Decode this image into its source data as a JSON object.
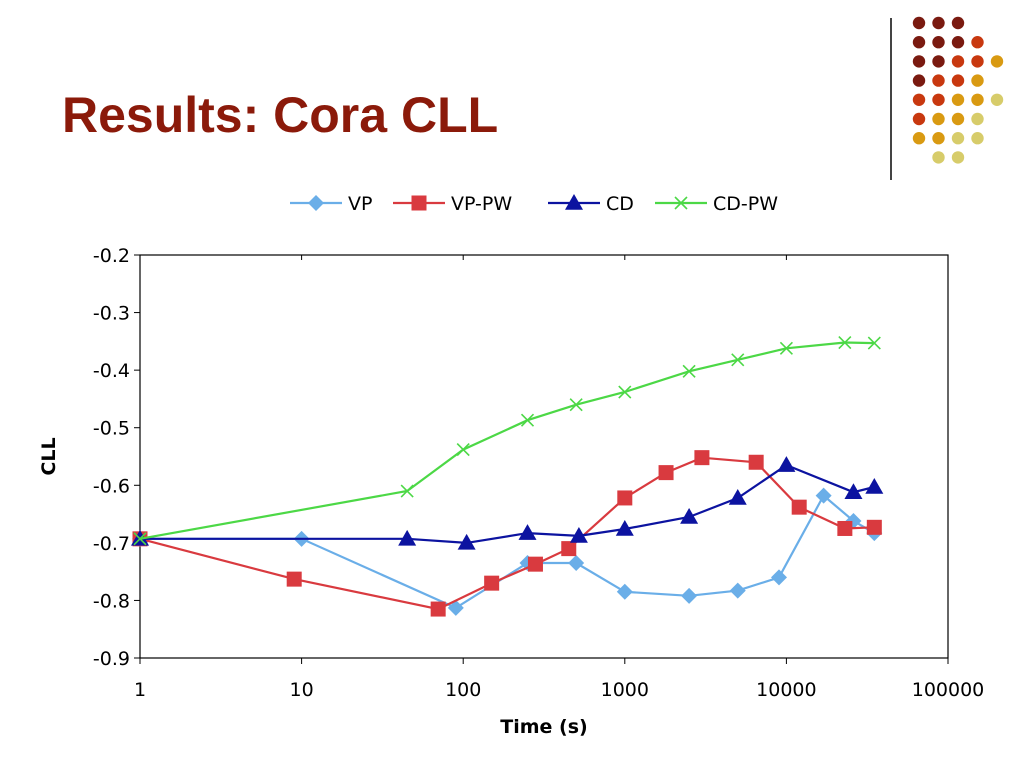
{
  "slide": {
    "title": "Results: Cora CLL"
  },
  "decor": {
    "dot_colors": [
      "#7a1a10",
      "#c8380f",
      "#d99a12",
      "#d7cc6a"
    ]
  },
  "chart_data": {
    "type": "line",
    "xscale": "log",
    "xlim": [
      1,
      100000
    ],
    "ylim": [
      -0.9,
      -0.2
    ],
    "xlabel": "Time (s)",
    "ylabel": "CLL",
    "x_ticks": [
      1,
      10,
      100,
      1000,
      10000,
      100000
    ],
    "x_tick_labels": [
      "1",
      "10",
      "100",
      "1000",
      "10000",
      "100000"
    ],
    "y_ticks": [
      -0.2,
      -0.3,
      -0.4,
      -0.5,
      -0.6,
      -0.7,
      -0.8,
      -0.9
    ],
    "y_tick_labels": [
      "-0.2",
      "-0.3",
      "-0.4",
      "-0.5",
      "-0.6",
      "-0.7",
      "-0.8",
      "-0.9"
    ],
    "legend_position": "top",
    "series": [
      {
        "name": "VP",
        "color": "#6aaee8",
        "marker": "diamond",
        "x": [
          1,
          10,
          90,
          250,
          500,
          1000,
          2500,
          5000,
          9000,
          17000,
          26000,
          35000
        ],
        "y": [
          -0.693,
          -0.693,
          -0.813,
          -0.735,
          -0.735,
          -0.785,
          -0.792,
          -0.783,
          -0.76,
          -0.618,
          -0.662,
          -0.683
        ]
      },
      {
        "name": "VP-PW",
        "color": "#d93a3f",
        "marker": "square",
        "x": [
          1,
          9,
          70,
          150,
          280,
          450,
          1000,
          1800,
          3000,
          6500,
          12000,
          23000,
          35000
        ],
        "y": [
          -0.693,
          -0.763,
          -0.815,
          -0.77,
          -0.737,
          -0.71,
          -0.622,
          -0.578,
          -0.552,
          -0.56,
          -0.638,
          -0.675,
          -0.673
        ]
      },
      {
        "name": "CD",
        "color": "#0c13a0",
        "marker": "triangle",
        "x": [
          1,
          45,
          105,
          250,
          520,
          1000,
          2500,
          5000,
          10000,
          26000,
          35000
        ],
        "y": [
          -0.693,
          -0.693,
          -0.7,
          -0.683,
          -0.688,
          -0.676,
          -0.655,
          -0.622,
          -0.565,
          -0.612,
          -0.603
        ]
      },
      {
        "name": "CD-PW",
        "color": "#4cd846",
        "marker": "x",
        "x": [
          1,
          45,
          100,
          250,
          500,
          1000,
          2500,
          5000,
          10000,
          23000,
          35000
        ],
        "y": [
          -0.693,
          -0.61,
          -0.538,
          -0.487,
          -0.46,
          -0.438,
          -0.402,
          -0.382,
          -0.362,
          -0.352,
          -0.353
        ]
      }
    ]
  }
}
